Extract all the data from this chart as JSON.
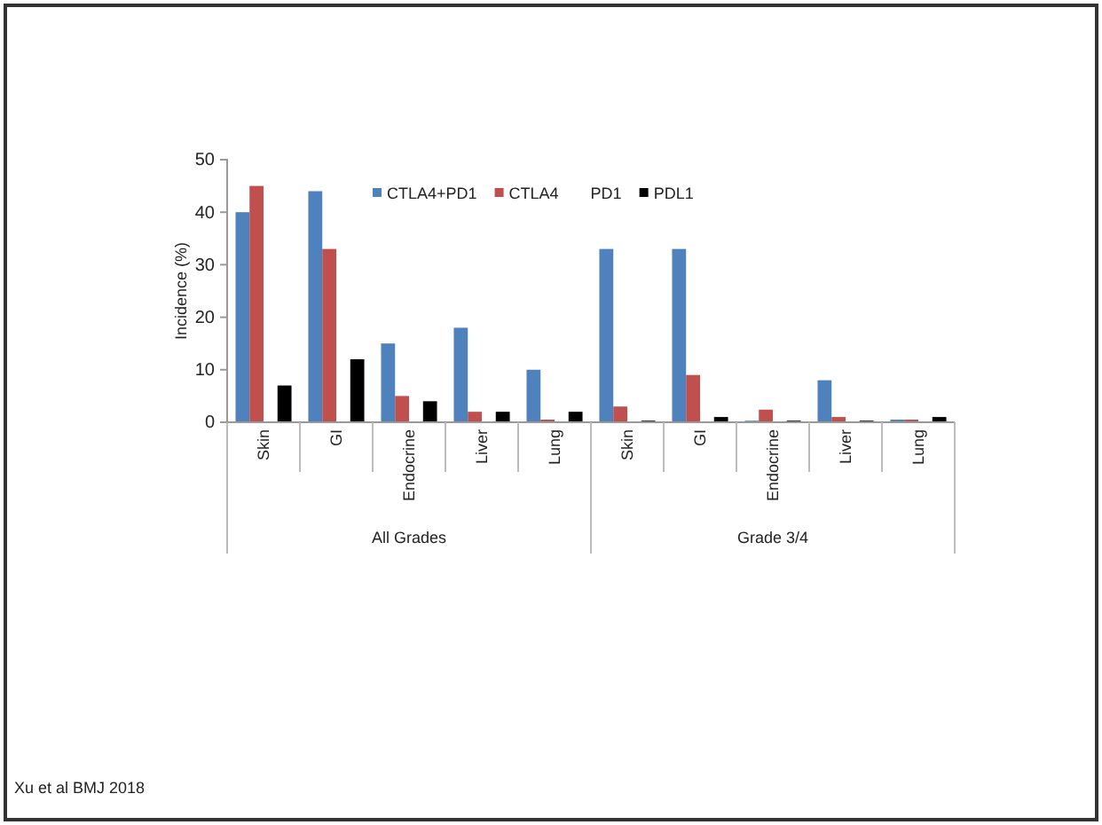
{
  "chart_data": {
    "type": "bar",
    "ylabel": "Incidence (%)",
    "categories": [
      "Skin",
      "GI",
      "Endocrine",
      "Liver",
      "Lung",
      "Skin",
      "GI",
      "Endocrine",
      "Liver",
      "Lung"
    ],
    "series": [
      {
        "name": "CTLA4+PD1",
        "color": "#4f81bd",
        "values": [
          40,
          44,
          15,
          18,
          10,
          33,
          33,
          0.3,
          8,
          0.5
        ]
      },
      {
        "name": "CTLA4",
        "color": "#c0504d",
        "values": [
          45,
          33,
          5,
          2,
          0.5,
          3,
          9,
          2.4,
          1,
          0.5
        ]
      },
      {
        "name": "PD1",
        "values": [
          null,
          null,
          null,
          null,
          null,
          null,
          null,
          null,
          null,
          null
        ]
      },
      {
        "name": "PDL1",
        "color": "#000000",
        "values": [
          7,
          12,
          4,
          2,
          2,
          0.3,
          1,
          0.3,
          0.3,
          1
        ]
      }
    ],
    "ylim": [
      0,
      50
    ],
    "yticks": [
      0,
      10,
      20,
      30,
      40,
      50
    ],
    "grid": false,
    "legend": "top",
    "annotations": [
      "All Grades",
      "Grade 3/4",
      "Xu et al BMJ 2018"
    ]
  }
}
